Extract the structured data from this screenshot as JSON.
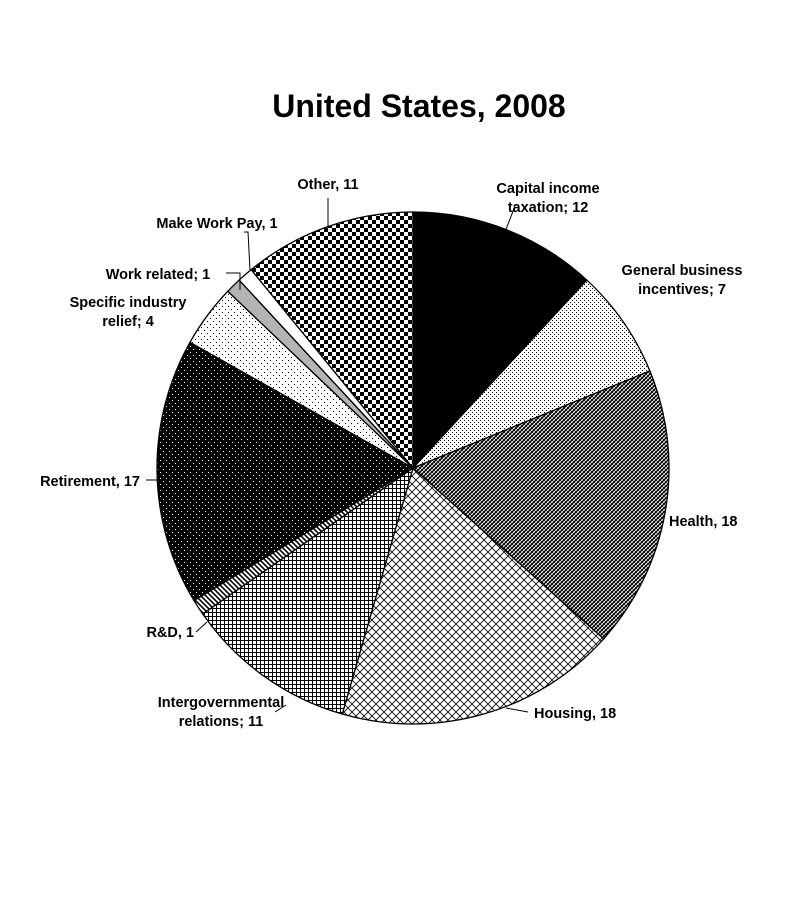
{
  "chart_data": {
    "type": "pie",
    "title": "United States, 2008",
    "start_angle_deg": 0,
    "direction": "clockwise",
    "slices": [
      {
        "name": "Capital income taxation",
        "value": 12,
        "label": [
          "Capital income",
          "taxation; 12"
        ],
        "pattern": "solid-black"
      },
      {
        "name": "General business incentives",
        "value": 7,
        "label": [
          "General business",
          "incentives; 7"
        ],
        "pattern": "sparse-dots"
      },
      {
        "name": "Health",
        "value": 18,
        "label": [
          "Health, 18"
        ],
        "pattern": "diagonal-weave"
      },
      {
        "name": "Housing",
        "value": 18,
        "label": [
          "Housing, 18"
        ],
        "pattern": "cross-hatch"
      },
      {
        "name": "Intergovernmental relations",
        "value": 11,
        "label": [
          "Intergovernmental",
          "relations; 11"
        ],
        "pattern": "grid"
      },
      {
        "name": "R&D",
        "value": 1,
        "label": [
          "R&D, 1"
        ],
        "pattern": "diagonal-stripes"
      },
      {
        "name": "Retirement",
        "value": 17,
        "label": [
          "Retirement, 17"
        ],
        "pattern": "black-dots"
      },
      {
        "name": "Specific industry relief",
        "value": 4,
        "label": [
          "Specific industry",
          "relief; 4"
        ],
        "pattern": "light-dots"
      },
      {
        "name": "Work related",
        "value": 1,
        "label": [
          "Work related; 1"
        ],
        "pattern": "gray"
      },
      {
        "name": "Make Work Pay",
        "value": 1,
        "label": [
          "Make Work Pay, 1"
        ],
        "pattern": "white"
      },
      {
        "name": "Other",
        "value": 11,
        "label": [
          "Other, 11"
        ],
        "pattern": "checker"
      }
    ]
  }
}
